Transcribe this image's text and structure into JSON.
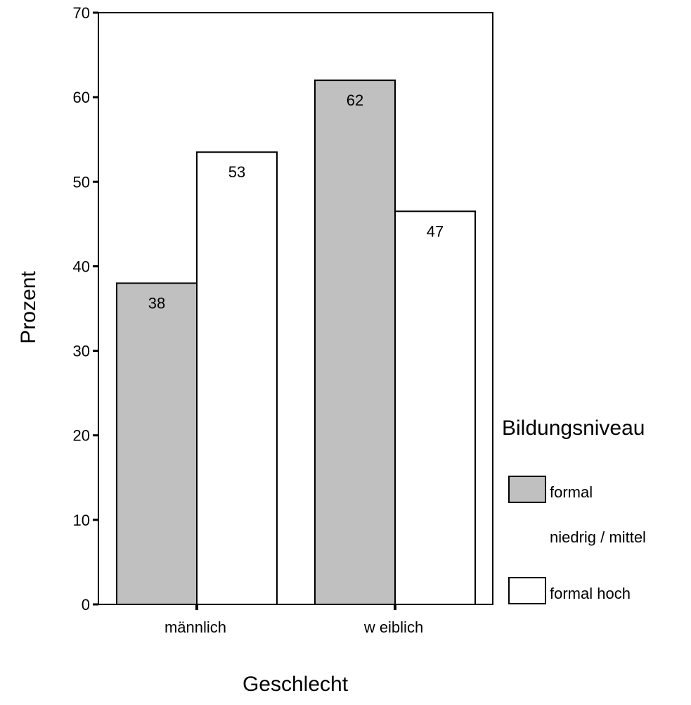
{
  "chart_data": {
    "type": "bar",
    "categories": [
      "männlich",
      "w eiblich"
    ],
    "series": [
      {
        "name": "formal niedrig / mittel",
        "values": [
          38,
          62
        ],
        "color": "#c0c0c0"
      },
      {
        "name": "formal hoch",
        "values": [
          53.5,
          46.5
        ],
        "color": "#ffffff"
      }
    ],
    "data_labels": [
      [
        "38",
        "62"
      ],
      [
        "53",
        "47"
      ]
    ],
    "xlabel": "Geschlecht",
    "ylabel": "Prozent",
    "ylim": [
      0,
      70
    ],
    "yticks": [
      0,
      10,
      20,
      30,
      40,
      50,
      60,
      70
    ],
    "grid": false,
    "legend": {
      "title": "Bildungsniveau",
      "placement": "right",
      "entries": [
        {
          "lines": [
            "formal",
            "niedrig / mittel"
          ],
          "color": "#c0c0c0"
        },
        {
          "lines": [
            "formal hoch"
          ],
          "color": "#ffffff"
        }
      ]
    }
  }
}
